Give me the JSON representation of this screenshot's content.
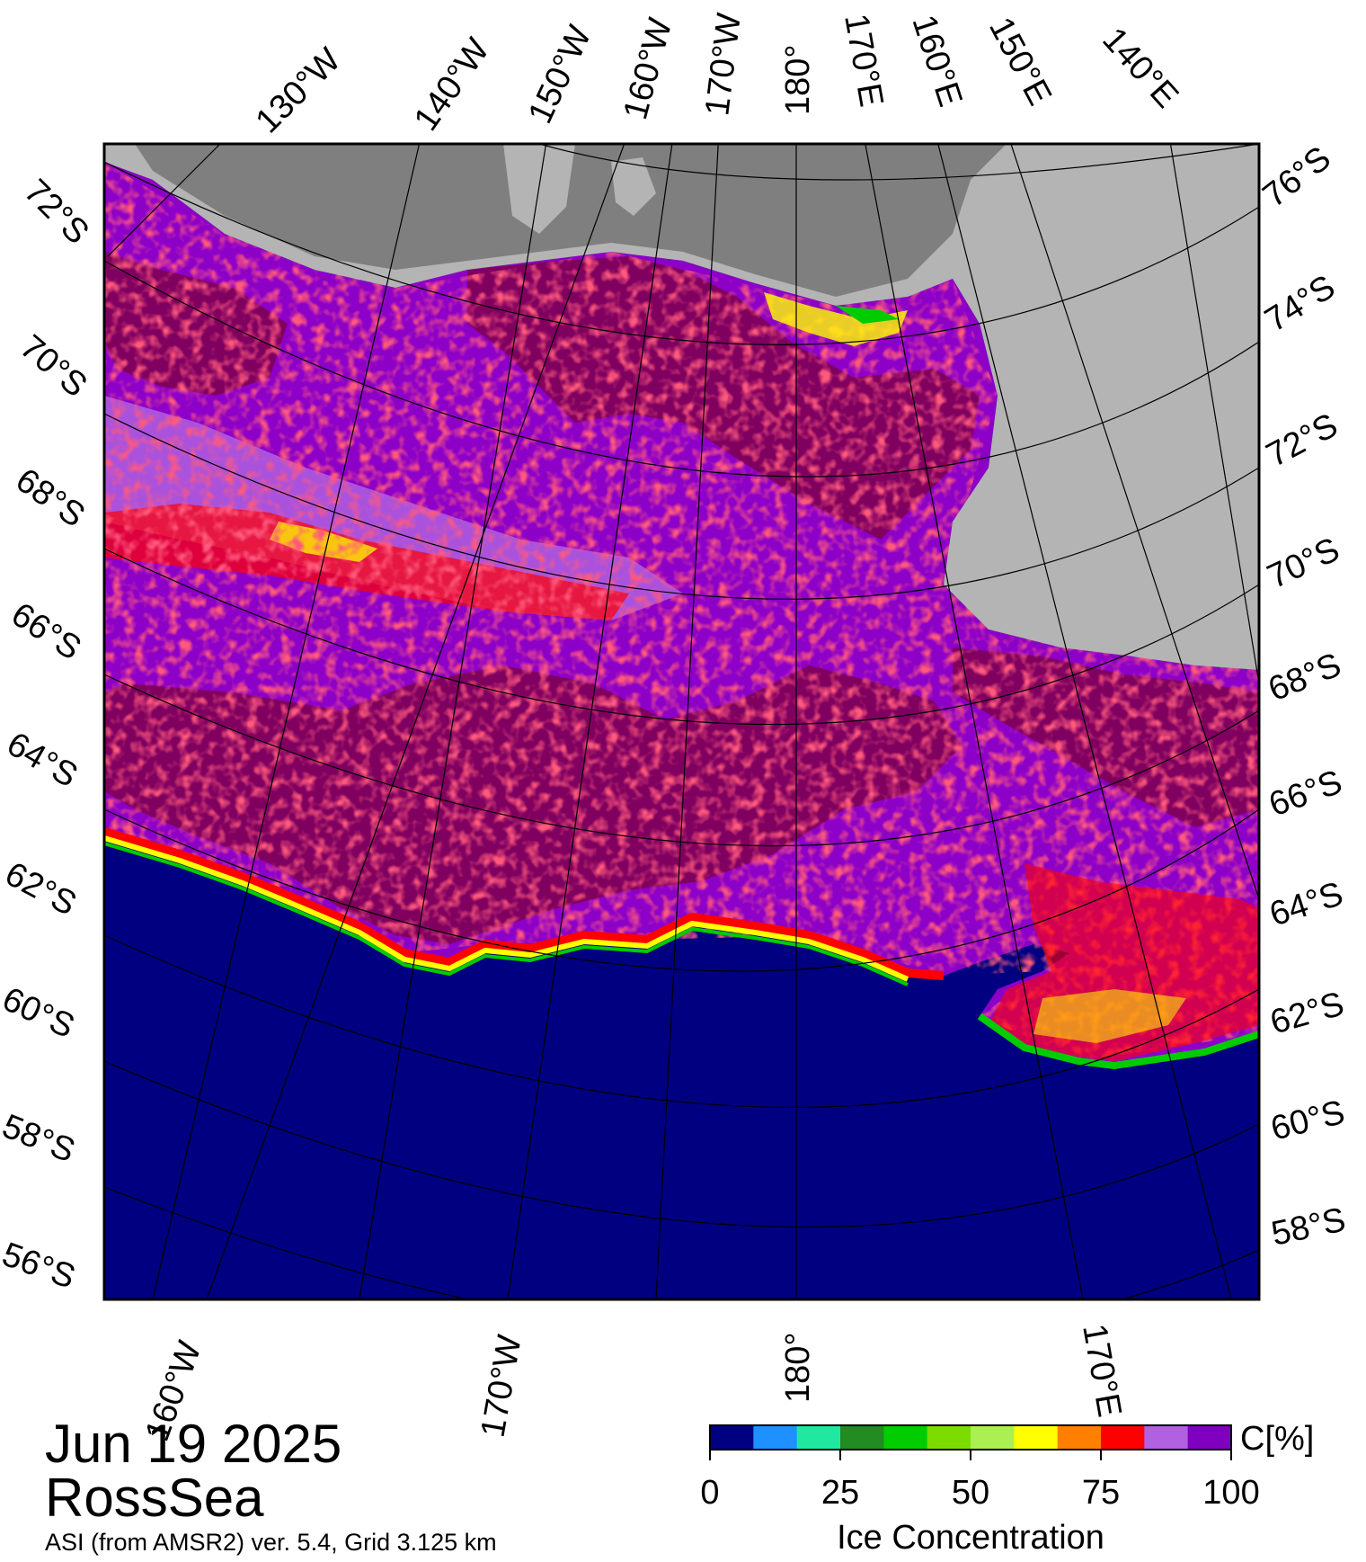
{
  "date": "Jun 19 2025",
  "region": "RossSea",
  "product_note": "ASI (from AMSR2) ver. 5.4,  Grid 3.125 km",
  "colorbar": {
    "title": "Ice Concentration",
    "unit": "C[%]",
    "ticks": [
      "0",
      "25",
      "50",
      "75",
      "100"
    ],
    "colors": [
      "#000080",
      "#1e90ff",
      "#20e8a0",
      "#228b22",
      "#00cc00",
      "#7cdc00",
      "#aaf050",
      "#ffff00",
      "#ff8000",
      "#ff0000",
      "#b060e0",
      "#8000c0"
    ]
  },
  "lon_labels_top": [
    "130°W",
    "140°W",
    "150°W",
    "160°W",
    "170°W",
    "180°",
    "170°E",
    "160°E",
    "150°E",
    "140°E"
  ],
  "lat_labels_left": [
    "72°S",
    "70°S",
    "68°S",
    "66°S",
    "64°S",
    "62°S",
    "60°S",
    "58°S",
    "56°S"
  ],
  "lat_labels_right": [
    "76°S",
    "74°S",
    "72°S",
    "70°S",
    "68°S",
    "66°S",
    "64°S",
    "62°S",
    "60°S",
    "58°S"
  ],
  "lon_labels_bottom": [
    "160°W",
    "170°W",
    "180°",
    "170°E"
  ],
  "colors": {
    "open_water": "#000080",
    "land": "#b4b4b4",
    "ice_shelf": "#7f7f7f",
    "ice_deep": "#800060",
    "ice_mid": "#8c00c8",
    "ice_light": "#b060e0",
    "ice_edge_red": "#ff0000",
    "ice_edge_yellow": "#ffff00",
    "ice_edge_green": "#00cc00"
  }
}
